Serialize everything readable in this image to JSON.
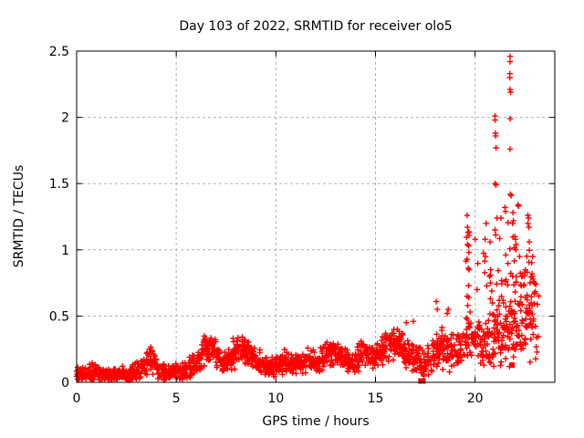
{
  "figure": {
    "title": "Day 103 of 2022, SRMTID for receiver olo5",
    "xlabel": "GPS time / hours",
    "ylabel": "SRMTID / TECUs"
  },
  "chart_data": {
    "type": "scatter",
    "title": "Day 103 of 2022, SRMTID for receiver olo5",
    "xlabel": "GPS time / hours",
    "ylabel": "SRMTID / TECUs",
    "xlim": [
      0,
      24
    ],
    "ylim": [
      0,
      2.5
    ],
    "xticks": [
      0,
      5,
      10,
      15,
      20
    ],
    "xtick_labels": [
      "0",
      "5",
      "10",
      "15",
      "20"
    ],
    "yticks": [
      0,
      0.5,
      1,
      1.5,
      2,
      2.5
    ],
    "ytick_labels": [
      "0",
      "0.5",
      "1",
      "1.5",
      "2",
      "2.5"
    ],
    "grid": {
      "show": true,
      "color": "#b0b0b0",
      "dash": "3,3"
    },
    "colors": {
      "marker": "#ff0000",
      "axis": "#000000",
      "background": "#ffffff",
      "text": "#000000"
    },
    "marker": "plus",
    "legend": "none",
    "seed": 20220103,
    "band_segment_hours": 0.2,
    "band_profile": [
      [
        0.0,
        0.08,
        0.05,
        16
      ],
      [
        0.2,
        0.08,
        0.05,
        16
      ],
      [
        0.4,
        0.07,
        0.04,
        16
      ],
      [
        0.6,
        0.07,
        0.05,
        16
      ],
      [
        0.8,
        0.08,
        0.05,
        16
      ],
      [
        1.0,
        0.07,
        0.04,
        16
      ],
      [
        1.2,
        0.06,
        0.04,
        16
      ],
      [
        1.4,
        0.05,
        0.04,
        16
      ],
      [
        1.6,
        0.05,
        0.03,
        16
      ],
      [
        1.8,
        0.05,
        0.04,
        16
      ],
      [
        2.0,
        0.06,
        0.04,
        16
      ],
      [
        2.2,
        0.06,
        0.04,
        16
      ],
      [
        2.4,
        0.05,
        0.04,
        16
      ],
      [
        2.6,
        0.06,
        0.04,
        16
      ],
      [
        2.8,
        0.07,
        0.05,
        16
      ],
      [
        3.0,
        0.08,
        0.05,
        16
      ],
      [
        3.2,
        0.11,
        0.06,
        16
      ],
      [
        3.4,
        0.15,
        0.07,
        16
      ],
      [
        3.6,
        0.18,
        0.07,
        16
      ],
      [
        3.8,
        0.15,
        0.07,
        16
      ],
      [
        4.0,
        0.1,
        0.06,
        16
      ],
      [
        4.2,
        0.08,
        0.05,
        16
      ],
      [
        4.4,
        0.07,
        0.04,
        16
      ],
      [
        4.6,
        0.07,
        0.04,
        16
      ],
      [
        4.8,
        0.08,
        0.05,
        16
      ],
      [
        5.0,
        0.08,
        0.05,
        16
      ],
      [
        5.2,
        0.09,
        0.05,
        16
      ],
      [
        5.4,
        0.1,
        0.05,
        16
      ],
      [
        5.6,
        0.11,
        0.06,
        16
      ],
      [
        5.8,
        0.13,
        0.06,
        16
      ],
      [
        6.0,
        0.16,
        0.07,
        16
      ],
      [
        6.2,
        0.21,
        0.08,
        16
      ],
      [
        6.4,
        0.25,
        0.08,
        16
      ],
      [
        6.6,
        0.26,
        0.07,
        16
      ],
      [
        6.8,
        0.23,
        0.07,
        16
      ],
      [
        7.0,
        0.19,
        0.06,
        16
      ],
      [
        7.2,
        0.16,
        0.06,
        16
      ],
      [
        7.4,
        0.15,
        0.06,
        16
      ],
      [
        7.6,
        0.17,
        0.07,
        16
      ],
      [
        7.8,
        0.21,
        0.08,
        16
      ],
      [
        8.0,
        0.25,
        0.08,
        16
      ],
      [
        8.2,
        0.26,
        0.07,
        16
      ],
      [
        8.4,
        0.22,
        0.07,
        16
      ],
      [
        8.6,
        0.23,
        0.08,
        16
      ],
      [
        8.8,
        0.2,
        0.07,
        16
      ],
      [
        9.0,
        0.16,
        0.06,
        16
      ],
      [
        9.2,
        0.14,
        0.05,
        16
      ],
      [
        9.4,
        0.13,
        0.05,
        16
      ],
      [
        9.6,
        0.12,
        0.05,
        16
      ],
      [
        9.8,
        0.12,
        0.05,
        16
      ],
      [
        10.0,
        0.13,
        0.05,
        16
      ],
      [
        10.2,
        0.14,
        0.06,
        16
      ],
      [
        10.4,
        0.16,
        0.06,
        16
      ],
      [
        10.6,
        0.15,
        0.06,
        16
      ],
      [
        10.8,
        0.14,
        0.05,
        16
      ],
      [
        11.0,
        0.14,
        0.05,
        16
      ],
      [
        11.2,
        0.15,
        0.06,
        16
      ],
      [
        11.4,
        0.17,
        0.07,
        16
      ],
      [
        11.6,
        0.19,
        0.07,
        16
      ],
      [
        11.8,
        0.17,
        0.06,
        16
      ],
      [
        12.0,
        0.16,
        0.06,
        16
      ],
      [
        12.2,
        0.18,
        0.07,
        16
      ],
      [
        12.4,
        0.21,
        0.08,
        16
      ],
      [
        12.6,
        0.23,
        0.08,
        16
      ],
      [
        12.8,
        0.22,
        0.07,
        16
      ],
      [
        13.0,
        0.21,
        0.07,
        16
      ],
      [
        13.2,
        0.19,
        0.07,
        16
      ],
      [
        13.4,
        0.17,
        0.06,
        16
      ],
      [
        13.6,
        0.16,
        0.06,
        16
      ],
      [
        13.8,
        0.17,
        0.07,
        16
      ],
      [
        14.0,
        0.19,
        0.07,
        16
      ],
      [
        14.2,
        0.21,
        0.07,
        16
      ],
      [
        14.4,
        0.22,
        0.07,
        16
      ],
      [
        14.6,
        0.2,
        0.07,
        16
      ],
      [
        14.8,
        0.19,
        0.07,
        16
      ],
      [
        15.0,
        0.21,
        0.08,
        16
      ],
      [
        15.2,
        0.24,
        0.08,
        16
      ],
      [
        15.4,
        0.26,
        0.08,
        16
      ],
      [
        15.6,
        0.28,
        0.09,
        16
      ],
      [
        15.8,
        0.3,
        0.09,
        16
      ],
      [
        16.0,
        0.28,
        0.09,
        16
      ],
      [
        16.2,
        0.26,
        0.09,
        16
      ],
      [
        16.4,
        0.24,
        0.09,
        16
      ],
      [
        16.6,
        0.22,
        0.08,
        16
      ],
      [
        16.8,
        0.2,
        0.08,
        16
      ],
      [
        17.0,
        0.18,
        0.08,
        14
      ],
      [
        17.2,
        0.15,
        0.08,
        14
      ],
      [
        17.4,
        0.14,
        0.08,
        14
      ],
      [
        17.6,
        0.16,
        0.08,
        14
      ],
      [
        17.8,
        0.2,
        0.1,
        14
      ],
      [
        18.0,
        0.24,
        0.12,
        14
      ],
      [
        18.2,
        0.26,
        0.12,
        14
      ],
      [
        18.4,
        0.24,
        0.1,
        14
      ],
      [
        18.6,
        0.25,
        0.12,
        14
      ],
      [
        18.8,
        0.24,
        0.1,
        14
      ],
      [
        19.0,
        0.25,
        0.11,
        14
      ],
      [
        19.2,
        0.27,
        0.12,
        14
      ],
      [
        19.4,
        0.3,
        0.13,
        14
      ],
      [
        19.6,
        0.33,
        0.15,
        14
      ],
      [
        19.8,
        0.32,
        0.14,
        14
      ],
      [
        20.0,
        0.3,
        0.13,
        14
      ],
      [
        20.2,
        0.28,
        0.12,
        14
      ],
      [
        20.4,
        0.3,
        0.13,
        14
      ],
      [
        20.6,
        0.32,
        0.14,
        14
      ],
      [
        20.8,
        0.34,
        0.15,
        14
      ],
      [
        21.0,
        0.35,
        0.16,
        14
      ],
      [
        21.2,
        0.34,
        0.16,
        14
      ],
      [
        21.4,
        0.35,
        0.17,
        14
      ],
      [
        21.6,
        0.38,
        0.18,
        14
      ],
      [
        21.8,
        0.4,
        0.19,
        14
      ],
      [
        22.0,
        0.42,
        0.2,
        14
      ],
      [
        22.2,
        0.44,
        0.2,
        14
      ],
      [
        22.4,
        0.45,
        0.2,
        14
      ],
      [
        22.6,
        0.46,
        0.2,
        14
      ],
      [
        22.8,
        0.48,
        0.21,
        12
      ],
      [
        23.0,
        0.4,
        0.18,
        8
      ]
    ],
    "halo_profile": [
      [
        19.5,
        0.9,
        0.3,
        4
      ],
      [
        20.0,
        0.7,
        0.15,
        2
      ],
      [
        20.4,
        0.8,
        0.25,
        4
      ],
      [
        20.7,
        0.78,
        0.22,
        4
      ],
      [
        21.0,
        0.8,
        0.28,
        6
      ],
      [
        21.2,
        0.75,
        0.25,
        5
      ],
      [
        21.4,
        0.8,
        0.28,
        6
      ],
      [
        21.6,
        0.85,
        0.3,
        7
      ],
      [
        21.8,
        0.85,
        0.3,
        7
      ],
      [
        22.0,
        0.8,
        0.28,
        6
      ],
      [
        22.2,
        0.82,
        0.28,
        6
      ],
      [
        22.4,
        0.78,
        0.25,
        5
      ],
      [
        22.6,
        0.85,
        0.28,
        6
      ],
      [
        22.8,
        0.78,
        0.22,
        5
      ],
      [
        23.0,
        0.68,
        0.15,
        3
      ]
    ],
    "outlier_points": [
      [
        21.0,
        2.01
      ],
      [
        21.0,
        1.98
      ],
      [
        21.02,
        1.88
      ],
      [
        21.03,
        1.86
      ],
      [
        21.05,
        1.77
      ],
      [
        21.0,
        1.5
      ],
      [
        21.05,
        1.49
      ],
      [
        21.1,
        1.24
      ],
      [
        21.0,
        1.15
      ],
      [
        21.75,
        2.46
      ],
      [
        21.75,
        2.42
      ],
      [
        21.74,
        2.33
      ],
      [
        21.74,
        2.3
      ],
      [
        21.75,
        2.21
      ],
      [
        21.78,
        2.19
      ],
      [
        21.76,
        1.99
      ],
      [
        21.75,
        1.76
      ],
      [
        21.77,
        1.42
      ],
      [
        21.81,
        1.41
      ],
      [
        19.6,
        1.26
      ],
      [
        19.62,
        1.17
      ],
      [
        19.65,
        1.13
      ],
      [
        19.7,
        1.11
      ],
      [
        19.62,
        1.04
      ],
      [
        19.68,
        1.03
      ],
      [
        19.6,
        0.93
      ],
      [
        19.65,
        0.86
      ],
      [
        19.7,
        0.85
      ],
      [
        19.67,
        0.73
      ],
      [
        19.6,
        0.65
      ],
      [
        19.68,
        0.64
      ],
      [
        19.63,
        0.58
      ],
      [
        20.0,
        1.08
      ],
      [
        20.55,
        1.2
      ],
      [
        20.5,
        1.08
      ],
      [
        20.52,
        0.95
      ],
      [
        20.75,
        1.06
      ],
      [
        20.78,
        0.85
      ],
      [
        20.72,
        0.8
      ],
      [
        20.77,
        0.75
      ],
      [
        21.3,
        1.24
      ],
      [
        21.5,
        1.32
      ],
      [
        21.52,
        1.29
      ],
      [
        21.9,
        1.28
      ],
      [
        21.92,
        1.22
      ],
      [
        21.88,
        1.2
      ],
      [
        22.15,
        1.34
      ],
      [
        22.18,
        1.33
      ],
      [
        22.65,
        1.26
      ],
      [
        22.68,
        1.24
      ],
      [
        22.65,
        1.2
      ],
      [
        22.7,
        1.17
      ],
      [
        22.72,
        1.06
      ],
      [
        22.0,
        1.1
      ],
      [
        22.02,
        1.08
      ],
      [
        18.05,
        0.61
      ],
      [
        18.1,
        0.55
      ],
      [
        18.65,
        0.55
      ],
      [
        18.6,
        0.52
      ],
      [
        16.55,
        0.45
      ],
      [
        16.9,
        0.46
      ],
      [
        22.88,
        0.8
      ],
      [
        22.9,
        0.78
      ],
      [
        22.93,
        0.76
      ]
    ],
    "square_points": [
      [
        17.28,
        0.01
      ],
      [
        17.38,
        0.01
      ],
      [
        21.85,
        0.13
      ]
    ]
  }
}
